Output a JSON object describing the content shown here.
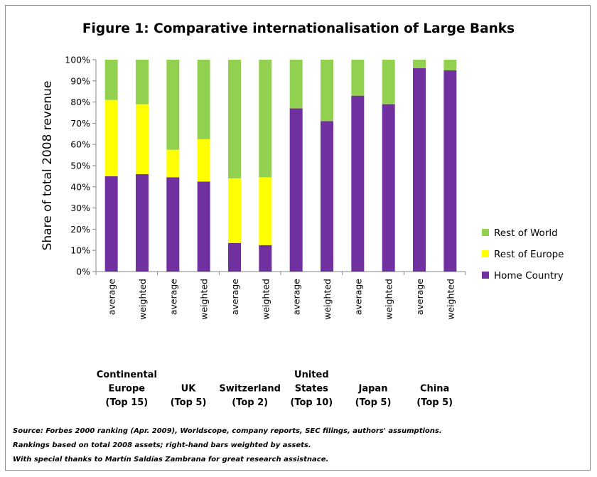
{
  "chart_data": {
    "type": "bar",
    "stacked": true,
    "title": "Figure 1: Comparative internationalisation of Large Banks",
    "ylabel": "Share of total 2008 revenue",
    "ylim": [
      0,
      100
    ],
    "yticks": [
      "0%",
      "10%",
      "20%",
      "30%",
      "40%",
      "50%",
      "60%",
      "70%",
      "80%",
      "90%",
      "100%"
    ],
    "categories": [
      "average",
      "weighted",
      "average",
      "weighted",
      "average",
      "weighted",
      "average",
      "weighted",
      "average",
      "weighted",
      "average",
      "weighted"
    ],
    "groups": [
      {
        "lines": [
          "Continental",
          "Europe",
          "(Top 15)"
        ]
      },
      {
        "lines": [
          "UK",
          "(Top 5)"
        ]
      },
      {
        "lines": [
          "Switzerland",
          "(Top 2)"
        ]
      },
      {
        "lines": [
          "United",
          "States",
          "(Top 10)"
        ]
      },
      {
        "lines": [
          "Japan",
          "(Top 5)"
        ]
      },
      {
        "lines": [
          "China",
          "(Top 5)"
        ]
      }
    ],
    "series": [
      {
        "name": "Home Country",
        "color": "#7030a0",
        "values": [
          45,
          46,
          44.5,
          42.5,
          13.5,
          12.5,
          77,
          71,
          83,
          79,
          96,
          95
        ]
      },
      {
        "name": "Rest of Europe",
        "color": "#ffff00",
        "values": [
          36,
          33,
          13,
          20,
          30.5,
          32,
          0,
          0,
          0,
          0,
          0,
          0
        ]
      },
      {
        "name": "Rest of World",
        "color": "#92d050",
        "values": [
          19,
          21,
          42.5,
          37.5,
          56,
          55.5,
          23,
          29,
          17,
          21,
          4,
          5
        ]
      }
    ],
    "legend": "right",
    "grid": false
  },
  "notes": {
    "source": "Source: Forbes 2000 ranking (Apr. 2009), Worldscope, company reports, SEC filings, authors' assumptions.",
    "rankings": "Rankings based on total 2008 assets; right-hand bars weighted by assets.",
    "thanks": "With special thanks to Martín Saldías Zambrana for great research  assistnace."
  }
}
